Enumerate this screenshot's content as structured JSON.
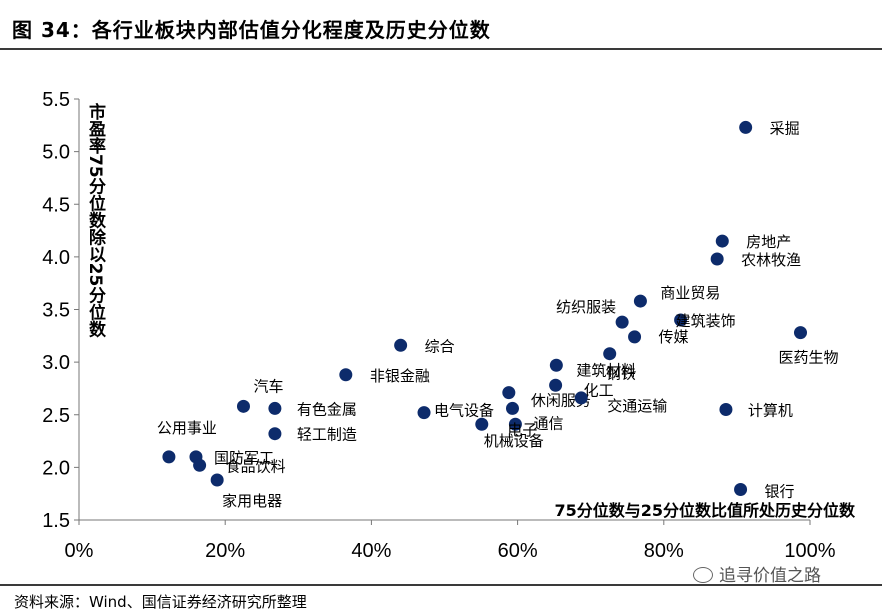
{
  "figure": {
    "title": "图 34：各行业板块内部估值分化程度及历史分位数",
    "source": "资料来源：Wind、国信证券经济研究所整理",
    "watermark": "追寻价值之路",
    "watermark_icon": "wechat-icon"
  },
  "chart_data": {
    "type": "scatter",
    "xlabel": "75分位数与25分位数比值所处历史分位数",
    "ylabel": "市盈率75分位数除以25分位数",
    "xlim": [
      0,
      1
    ],
    "ylim": [
      1.5,
      5.5
    ],
    "x_ticks": [
      0,
      0.2,
      0.4,
      0.6,
      0.8,
      1.0
    ],
    "x_tick_labels": [
      "0%",
      "20%",
      "40%",
      "60%",
      "80%",
      "100%"
    ],
    "y_ticks": [
      1.5,
      2.0,
      2.5,
      3.0,
      3.5,
      4.0,
      4.5,
      5.0,
      5.5
    ],
    "y_tick_labels": [
      "1.5",
      "2.0",
      "2.5",
      "3.0",
      "3.5",
      "4.0",
      "4.5",
      "5.0",
      "5.5"
    ],
    "grid": false,
    "marker_color": "#0d2b6b",
    "points": [
      {
        "name": "采掘",
        "x": 0.912,
        "y": 5.23
      },
      {
        "name": "房地产",
        "x": 0.88,
        "y": 4.15
      },
      {
        "name": "农林牧渔",
        "x": 0.873,
        "y": 3.98
      },
      {
        "name": "商业贸易",
        "x": 0.768,
        "y": 3.58
      },
      {
        "name": "纺织服装",
        "x": 0.743,
        "y": 3.38
      },
      {
        "name": "建筑装饰",
        "x": 0.823,
        "y": 3.4
      },
      {
        "name": "传媒",
        "x": 0.76,
        "y": 3.24
      },
      {
        "name": "医药生物",
        "x": 0.987,
        "y": 3.28
      },
      {
        "name": "钢铁",
        "x": 0.726,
        "y": 3.08
      },
      {
        "name": "建筑材料",
        "x": 0.653,
        "y": 2.97
      },
      {
        "name": "综合",
        "x": 0.44,
        "y": 3.16
      },
      {
        "name": "非银金融",
        "x": 0.365,
        "y": 2.88
      },
      {
        "name": "化工",
        "x": 0.652,
        "y": 2.78
      },
      {
        "name": "休闲服务",
        "x": 0.588,
        "y": 2.71
      },
      {
        "name": "交通运输",
        "x": 0.687,
        "y": 2.66
      },
      {
        "name": "通信",
        "x": 0.593,
        "y": 2.56
      },
      {
        "name": "电气设备",
        "x": 0.472,
        "y": 2.52
      },
      {
        "name": "计算机",
        "x": 0.885,
        "y": 2.55
      },
      {
        "name": "电子",
        "x": 0.597,
        "y": 2.41
      },
      {
        "name": "机械设备",
        "x": 0.551,
        "y": 2.41
      },
      {
        "name": "汽车",
        "x": 0.225,
        "y": 2.58
      },
      {
        "name": "有色金属",
        "x": 0.268,
        "y": 2.56
      },
      {
        "name": "轻工制造",
        "x": 0.268,
        "y": 2.32
      },
      {
        "name": "公用事业",
        "x": 0.123,
        "y": 2.1
      },
      {
        "name": "国防军工",
        "x": 0.16,
        "y": 2.1
      },
      {
        "name": "食品饮料",
        "x": 0.165,
        "y": 2.02
      },
      {
        "name": "家用电器",
        "x": 0.189,
        "y": 1.88
      },
      {
        "name": "银行",
        "x": 0.905,
        "y": 1.79
      }
    ]
  }
}
